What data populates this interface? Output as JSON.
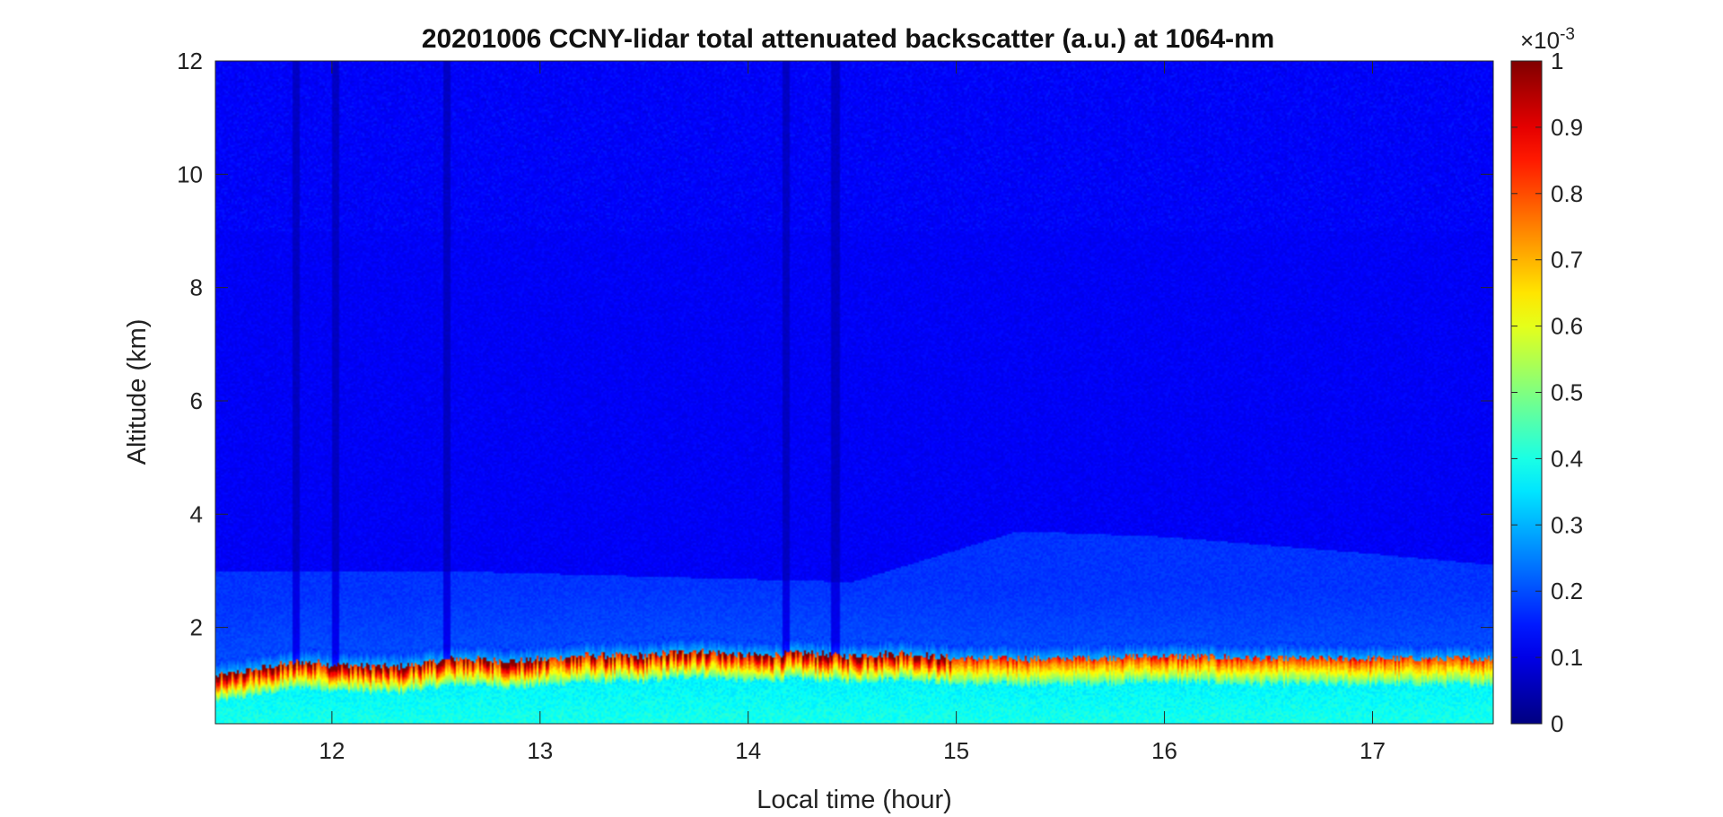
{
  "chart_data": {
    "type": "heatmap",
    "title": "20201006 CCNY-lidar total attenuated backscatter (a.u.) at 1064-nm",
    "xlabel": "Local time (hour)",
    "ylabel": "Altitude (km)",
    "xlim": [
      11.44,
      17.58
    ],
    "ylim": [
      0.3,
      12
    ],
    "x_ticks": [
      12,
      13,
      14,
      15,
      16,
      17
    ],
    "y_ticks": [
      2,
      4,
      6,
      8,
      10,
      12
    ],
    "colormap": "jet",
    "colorbar": {
      "range": [
        0,
        0.001
      ],
      "exponent_label": "×10",
      "exponent_value": "-3",
      "ticks": [
        "0",
        "0.1",
        "0.2",
        "0.3",
        "0.4",
        "0.5",
        "0.6",
        "0.7",
        "0.8",
        "0.9",
        "1"
      ]
    },
    "grid": false,
    "boundary_layer_top_km": [
      [
        11.45,
        1.15
      ],
      [
        11.7,
        1.3
      ],
      [
        11.85,
        1.4
      ],
      [
        12.0,
        1.35
      ],
      [
        12.3,
        1.3
      ],
      [
        12.6,
        1.45
      ],
      [
        12.9,
        1.4
      ],
      [
        13.2,
        1.5
      ],
      [
        13.5,
        1.5
      ],
      [
        13.75,
        1.6
      ],
      [
        14.0,
        1.5
      ],
      [
        14.25,
        1.55
      ],
      [
        14.5,
        1.5
      ],
      [
        14.75,
        1.55
      ],
      [
        15.0,
        1.45
      ],
      [
        15.5,
        1.45
      ],
      [
        16.0,
        1.5
      ],
      [
        16.5,
        1.45
      ],
      [
        17.0,
        1.45
      ],
      [
        17.58,
        1.45
      ]
    ],
    "residual_layer_top_km": [
      [
        11.45,
        3.0
      ],
      [
        12.5,
        3.0
      ],
      [
        13.5,
        2.9
      ],
      [
        14.5,
        2.8
      ],
      [
        15.3,
        3.7
      ],
      [
        16.0,
        3.6
      ],
      [
        17.0,
        3.3
      ],
      [
        17.58,
        3.1
      ]
    ],
    "signal_dropout_hours": [
      11.83,
      12.02,
      12.55,
      14.18,
      14.42
    ]
  }
}
